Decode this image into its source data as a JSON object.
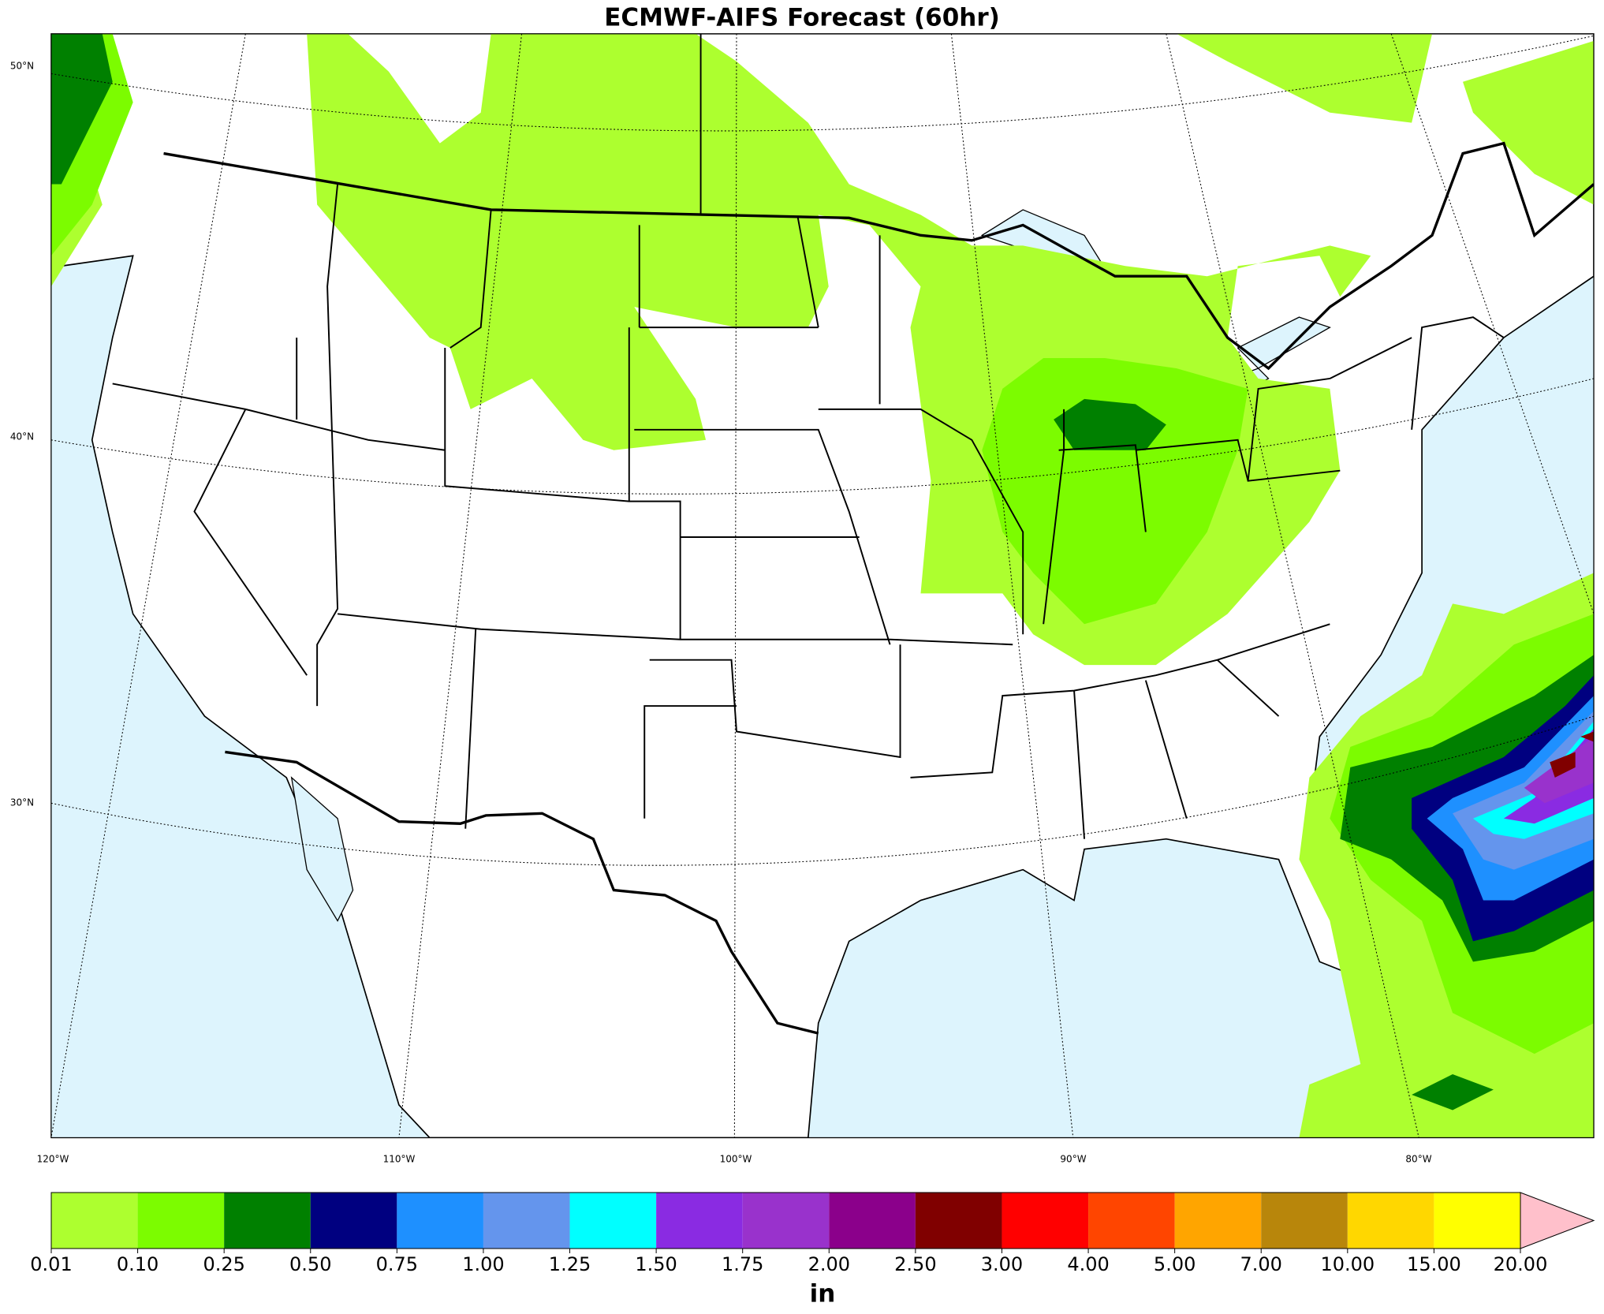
{
  "title": "ECMWF-AIFS Forecast (60hr)",
  "map": {
    "lon_labels": [
      "120°W",
      "110°W",
      "100°W",
      "90°W",
      "80°W"
    ],
    "lat_labels": [
      "50°N",
      "40°N",
      "30°N"
    ]
  },
  "colorbar": {
    "label": "in",
    "ticks": [
      {
        "value": 0.01,
        "label": "0.01"
      },
      {
        "value": 0.1,
        "label": "0.10"
      },
      {
        "value": 0.25,
        "label": "0.25"
      },
      {
        "value": 0.5,
        "label": "0.50"
      },
      {
        "value": 0.75,
        "label": "0.75"
      },
      {
        "value": 1,
        "label": "1.00"
      },
      {
        "value": 1.25,
        "label": "1.25"
      },
      {
        "value": 1.5,
        "label": "1.50"
      },
      {
        "value": 1.75,
        "label": "1.75"
      },
      {
        "value": 2,
        "label": "2.00"
      },
      {
        "value": 2.5,
        "label": "2.50"
      },
      {
        "value": 3,
        "label": "3.00"
      },
      {
        "value": 4,
        "label": "4.00"
      },
      {
        "value": 5,
        "label": "5.00"
      },
      {
        "value": 7,
        "label": "7.00"
      },
      {
        "value": 10,
        "label": "10.00"
      },
      {
        "value": 15,
        "label": "15.00"
      },
      {
        "value": 20,
        "label": "20.00"
      }
    ],
    "colors": [
      "#adff2f",
      "#7cfc00",
      "#008000",
      "#000080",
      "#1e90ff",
      "#6495ed",
      "#00ffff",
      "#8a2be2",
      "#9932cc",
      "#8b008b",
      "#800000",
      "#ff0000",
      "#ff4500",
      "#ffa500",
      "#b8860b",
      "#ffd700",
      "#ffff00"
    ],
    "extend_color": "#ffc0cb"
  }
}
